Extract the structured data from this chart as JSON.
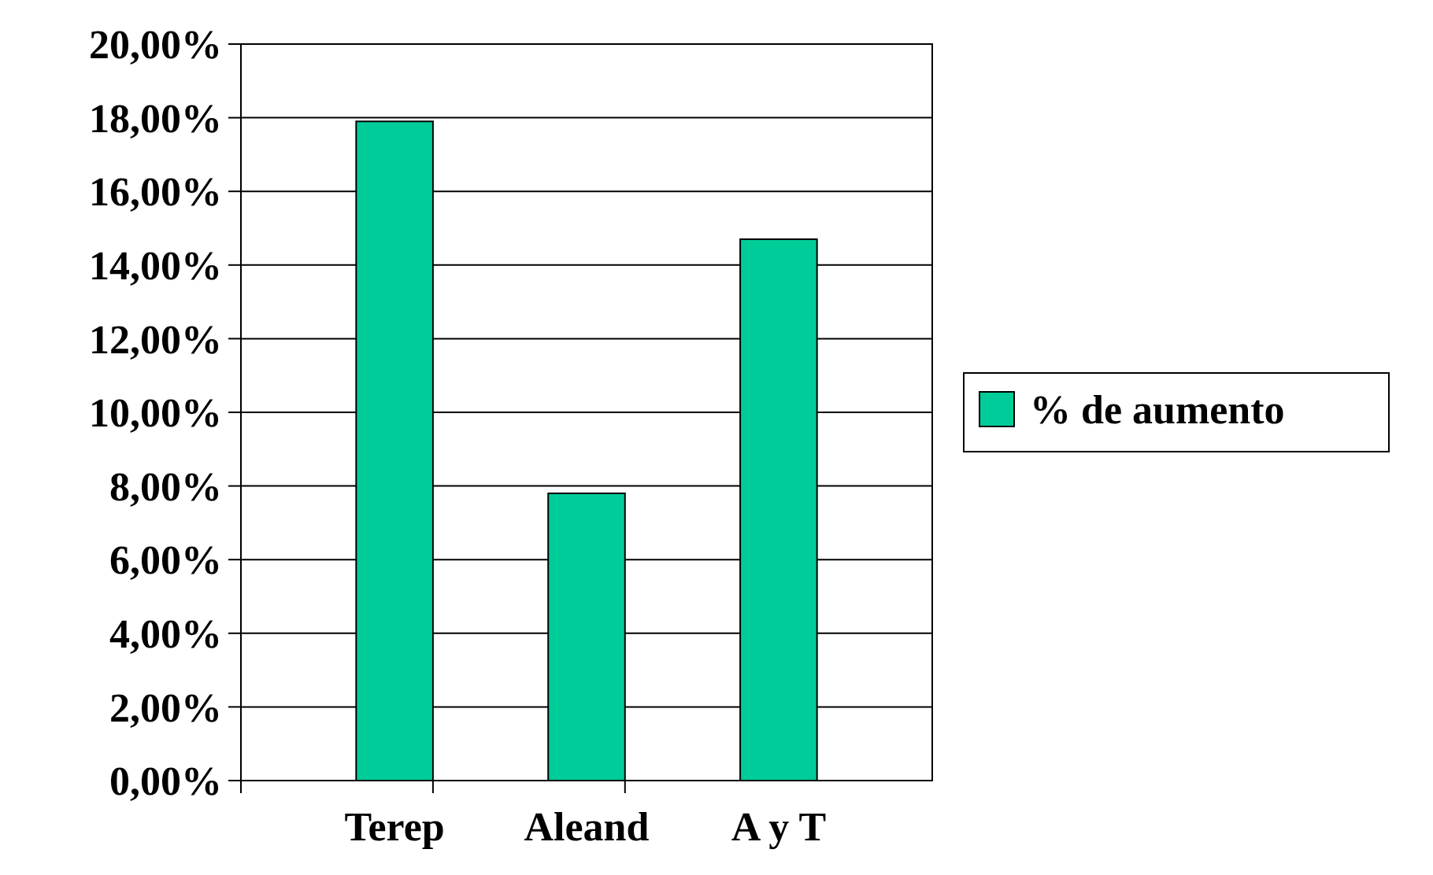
{
  "chart_data": {
    "type": "bar",
    "categories": [
      "Terep",
      "Aleand",
      "A y T"
    ],
    "series": [
      {
        "name": "% de aumento",
        "color": "#00cc99",
        "values": [
          17.9,
          7.8,
          14.7
        ]
      }
    ],
    "ylim": [
      0,
      20
    ],
    "yticks": [
      {
        "value": 0,
        "label": "0,00%"
      },
      {
        "value": 2,
        "label": "2,00%"
      },
      {
        "value": 4,
        "label": "4,00%"
      },
      {
        "value": 6,
        "label": "6,00%"
      },
      {
        "value": 8,
        "label": "8,00%"
      },
      {
        "value": 10,
        "label": "10,00%"
      },
      {
        "value": 12,
        "label": "12,00%"
      },
      {
        "value": 14,
        "label": "14,00%"
      },
      {
        "value": 16,
        "label": "16,00%"
      },
      {
        "value": 18,
        "label": "18,00%"
      },
      {
        "value": 20,
        "label": "20,00%"
      }
    ],
    "grid": "y",
    "legend": "right"
  }
}
